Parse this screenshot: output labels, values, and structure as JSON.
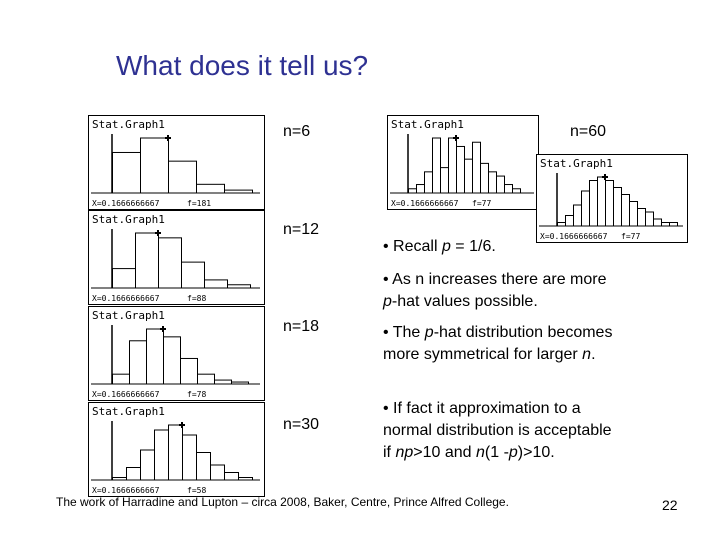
{
  "slide": {
    "title": "What does it tell us?",
    "footer": "The work of Harradine and Lupton – circa 2008, Baker, Centre, Prince Alfred College.",
    "page_number": "22"
  },
  "graphs": [
    {
      "screen_title": "Stat.Graph1",
      "readout_x": "X=0.1666666667",
      "readout_f": "f=181",
      "label": "n=6",
      "bars": [
        0.28,
        0.38,
        0.22,
        0.06,
        0.02
      ],
      "peak_index": 1
    },
    {
      "screen_title": "Stat.Graph1",
      "readout_x": "X=0.1666666667",
      "readout_f": "f=88",
      "label": "n=12",
      "bars": [
        0.12,
        0.34,
        0.31,
        0.16,
        0.05,
        0.02
      ],
      "peak_index": 1
    },
    {
      "screen_title": "Stat.Graph1",
      "readout_x": "X=0.1666666667",
      "readout_f": "f=78",
      "label": "n=18",
      "bars": [
        0.05,
        0.22,
        0.28,
        0.24,
        0.13,
        0.05,
        0.02,
        0.01
      ],
      "peak_index": 2
    },
    {
      "screen_title": "Stat.Graph1",
      "readout_x": "X=0.1666666667",
      "readout_f": "f=58",
      "label": "n=30",
      "bars": [
        0.01,
        0.05,
        0.12,
        0.2,
        0.22,
        0.18,
        0.11,
        0.06,
        0.03,
        0.01
      ],
      "peak_index": 4
    },
    {
      "screen_title": "Stat.Graph1",
      "readout_x": "X=0.1666666667",
      "readout_f": "f=77",
      "label": "n=60",
      "bars": [
        0.01,
        0.02,
        0.05,
        0.13,
        0.06,
        0.13,
        0.11,
        0.08,
        0.12,
        0.07,
        0.05,
        0.04,
        0.02,
        0.01
      ],
      "peak_index": 5
    },
    {
      "screen_title": "Stat.Graph1",
      "readout_x": "X=0.1666666667",
      "readout_f": "f=77",
      "label": "",
      "bars": [
        0.01,
        0.03,
        0.06,
        0.1,
        0.13,
        0.14,
        0.13,
        0.11,
        0.09,
        0.07,
        0.05,
        0.04,
        0.02,
        0.01,
        0.01
      ],
      "peak_index": 5
    }
  ],
  "bullets": [
    {
      "parts": [
        "• Recall ",
        {
          "i": "p"
        },
        " = 1/6."
      ]
    },
    {
      "parts": [
        "• As n increases there are more ",
        {
          "i": "p"
        },
        "-hat values possible."
      ]
    },
    {
      "parts": [
        "• The ",
        {
          "i": "p"
        },
        "-hat distribution becomes more symmetrical for larger ",
        {
          "i": "n"
        },
        "."
      ]
    },
    {
      "parts": [
        "• If fact it approximation to a normal distribution is acceptable if ",
        {
          "i": "np"
        },
        ">10 and ",
        {
          "i": "n"
        },
        "(1 -",
        {
          "i": "p"
        },
        ")>10."
      ]
    }
  ]
}
